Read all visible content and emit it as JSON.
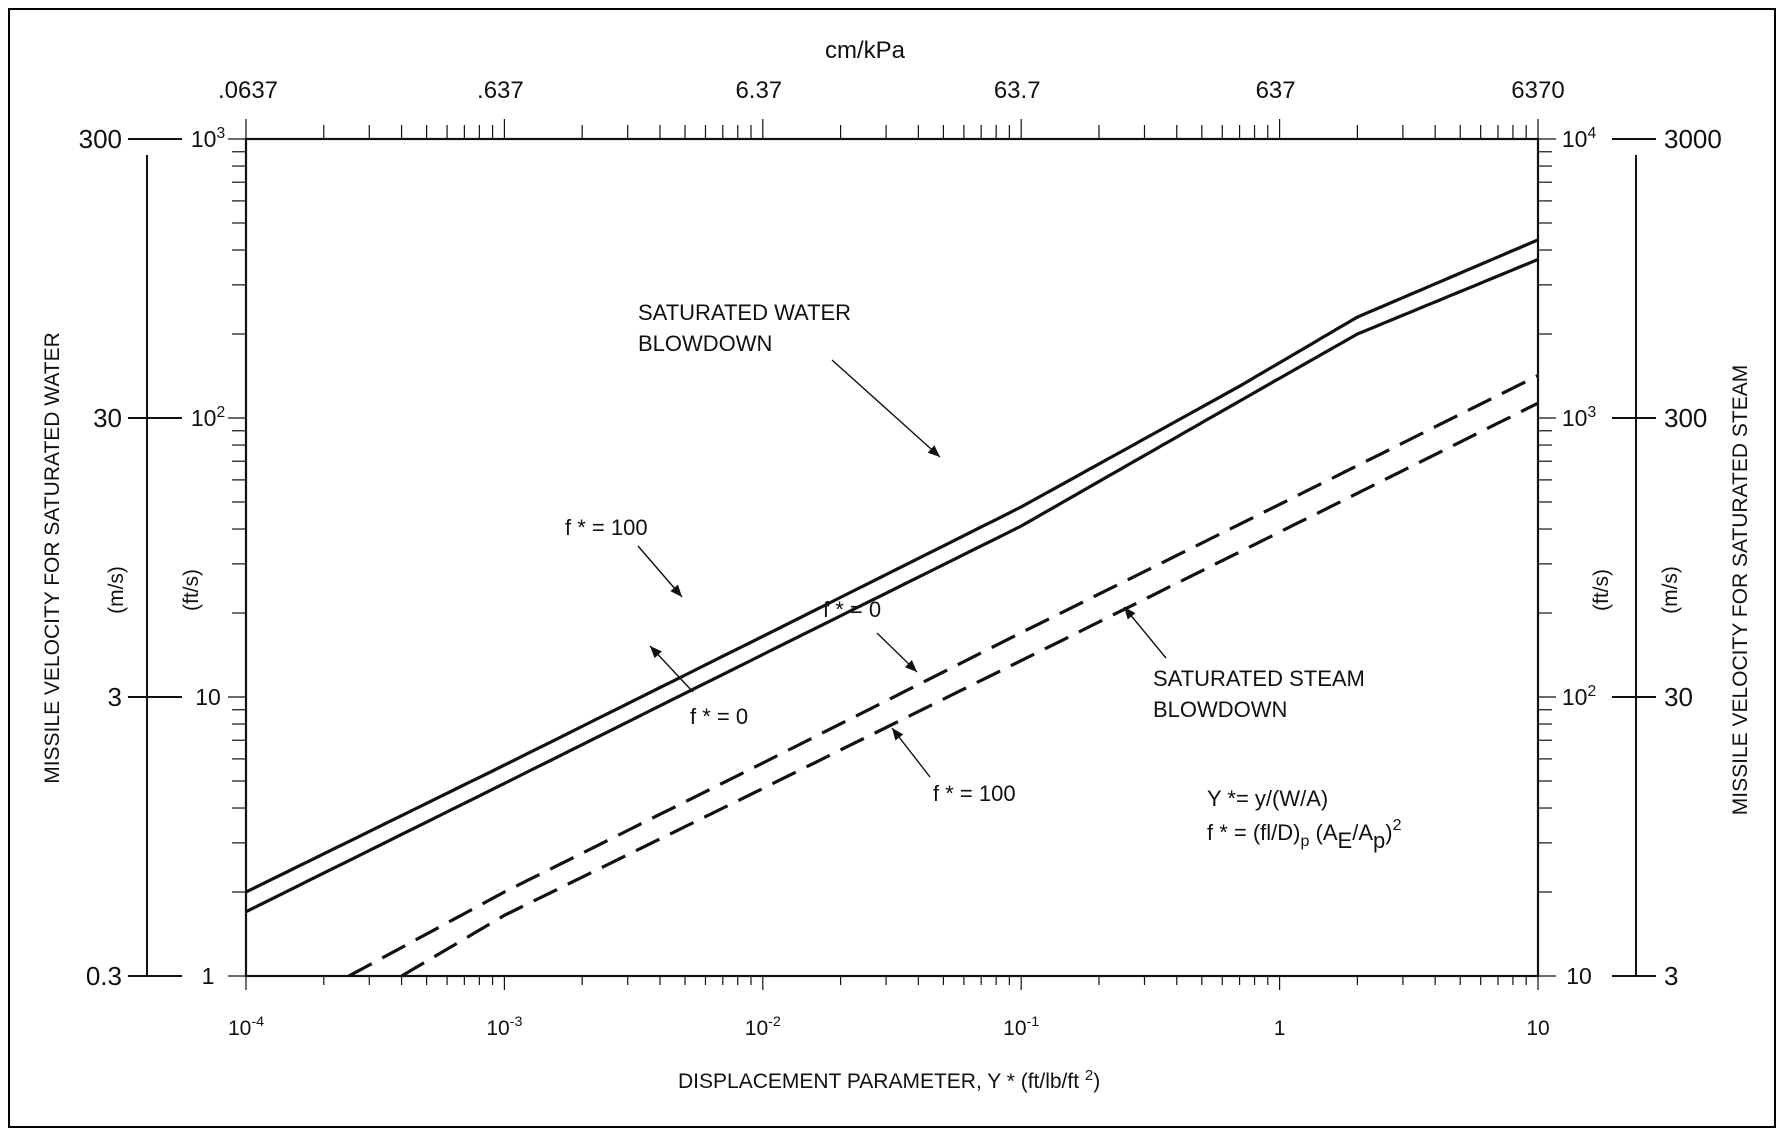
{
  "chart_data": {
    "type": "line",
    "x_scale": "log",
    "y_scale": "log",
    "xlim": [
      0.0001,
      10
    ],
    "ylim_ft_s": [
      1,
      1000
    ],
    "grid": false,
    "xlabel": "DISPLACEMENT PARAMETER, Y * (ft/lb/ft2)",
    "x_ticks": [
      {
        "value": 0.0001,
        "base": "10",
        "exp": "-4"
      },
      {
        "value": 0.001,
        "base": "10",
        "exp": "-3"
      },
      {
        "value": 0.01,
        "base": "10",
        "exp": "-2"
      },
      {
        "value": 0.1,
        "base": "10",
        "exp": "-1"
      },
      {
        "value": 1,
        "base": "1",
        "exp": ""
      },
      {
        "value": 10,
        "base": "10",
        "exp": ""
      }
    ],
    "top_axis": {
      "label": "cm/kPa",
      "ticks": [
        ".0637",
        ".637",
        "6.37",
        "63.7",
        "637",
        "6370"
      ]
    },
    "left_axis_title": "MISSILE VELOCITY FOR SATURATED WATER",
    "left_unit_ms": "(m/s)",
    "left_unit_fts": "(ft/s)",
    "left_ticks_ms": [
      "300",
      "30",
      "3",
      "0.3"
    ],
    "left_ticks_fts": [
      {
        "base": "10",
        "exp": "3"
      },
      {
        "base": "10",
        "exp": "2"
      },
      {
        "base": "10",
        "exp": ""
      },
      {
        "base": "1",
        "exp": ""
      }
    ],
    "right_axis_title": "MISSILE VELOCITY FOR SATURATED STEAM",
    "right_unit_ms": "(m/s)",
    "right_unit_fts": "(ft/s)",
    "right_ticks_fts": [
      {
        "base": "10",
        "exp": "4"
      },
      {
        "base": "10",
        "exp": "3"
      },
      {
        "base": "10",
        "exp": "2"
      },
      {
        "base": "10",
        "exp": ""
      }
    ],
    "right_ticks_ms": [
      "3000",
      "300",
      "30",
      "3"
    ],
    "series": [
      {
        "group": "water",
        "style": "solid",
        "f_star": 100,
        "points": [
          [
            0.0001,
            2.0
          ],
          [
            0.001,
            5.7
          ],
          [
            0.01,
            16.5
          ],
          [
            0.1,
            48
          ],
          [
            0.7,
            130
          ],
          [
            2,
            230
          ],
          [
            10,
            435
          ]
        ]
      },
      {
        "group": "water",
        "style": "solid",
        "f_star": 0,
        "points": [
          [
            0.0001,
            1.7
          ],
          [
            0.001,
            4.9
          ],
          [
            0.01,
            14.2
          ],
          [
            0.1,
            41
          ],
          [
            0.7,
            115
          ],
          [
            2,
            200
          ],
          [
            10,
            370
          ]
        ]
      },
      {
        "group": "steam",
        "style": "dashed",
        "f_star": 0,
        "points": [
          [
            0.00025,
            10
          ],
          [
            0.001,
            20
          ],
          [
            0.01,
            58
          ],
          [
            0.1,
            170
          ],
          [
            1,
            490
          ],
          [
            10,
            1420
          ]
        ]
      },
      {
        "group": "steam",
        "style": "dashed",
        "f_star": 100,
        "points": [
          [
            0.0004,
            10
          ],
          [
            0.001,
            16.5
          ],
          [
            0.01,
            47
          ],
          [
            0.1,
            135
          ],
          [
            1,
            390
          ],
          [
            10,
            1130
          ]
        ]
      }
    ],
    "annotations": {
      "water_line1": "SATURATED WATER",
      "water_line2": "BLOWDOWN",
      "steam_line1": "SATURATED STEAM",
      "steam_line2": "BLOWDOWN",
      "water_f100": "f * = 100",
      "water_f0": "f * = 0",
      "steam_f0": "f * = 0",
      "steam_f100": "f * = 100"
    },
    "formula": {
      "line1": "Y *= y/(W/A)",
      "line2_a": "f * = (fl/D)",
      "line2_sub_p": "p",
      "line2_b": " (A",
      "line2_sub_e": "E",
      "line2_c": "/A",
      "line2_sub_p2": "p",
      "line2_d": ")",
      "line2_sup": "2"
    }
  }
}
